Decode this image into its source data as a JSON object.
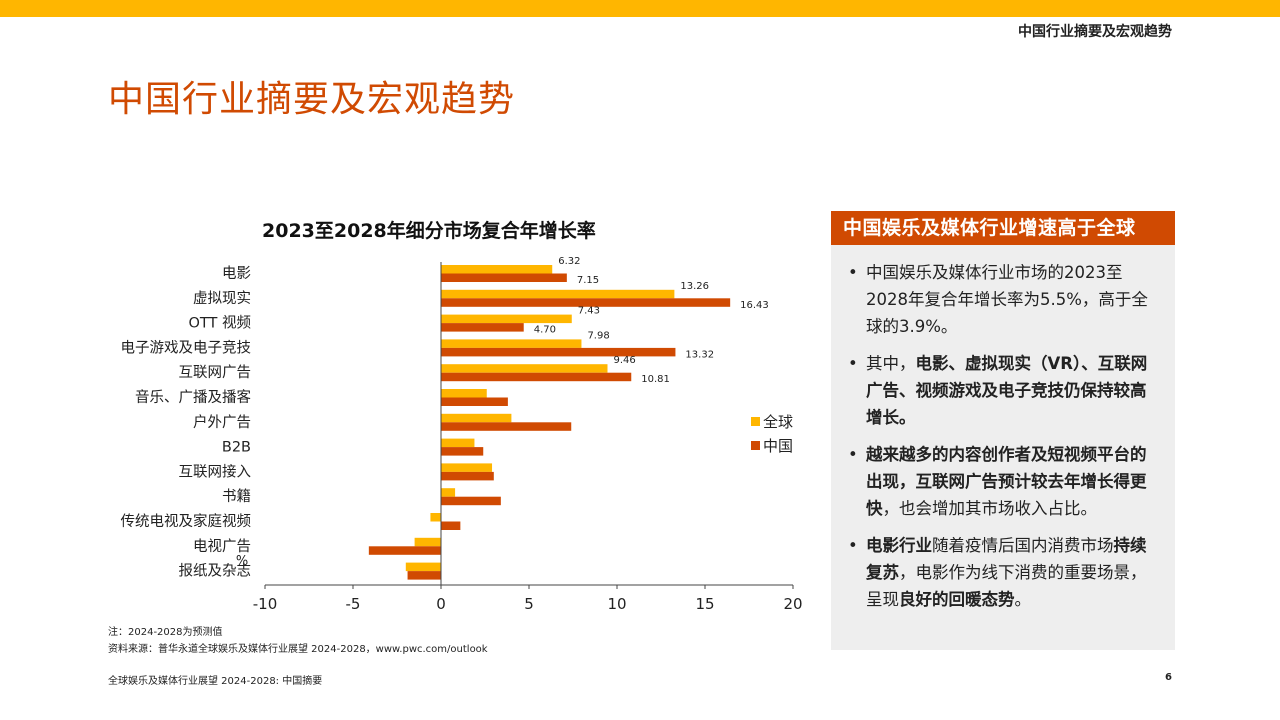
{
  "header": {
    "label": "中国行业摘要及宏观趋势"
  },
  "page_title": "中国行业摘要及宏观趋势",
  "chart_data": {
    "type": "bar",
    "orientation": "horizontal",
    "title": "2023至2028年细分市场复合年增长率",
    "xlabel": "",
    "ylabel": "%",
    "xlim": [
      -10,
      20
    ],
    "xticks": [
      "-10",
      "-5",
      "0",
      "5",
      "10",
      "15",
      "20"
    ],
    "categories": [
      "电影",
      "虚拟现实",
      "OTT 视频",
      "电子游戏及电子竞技",
      "互联网广告",
      "音乐、广播及播客",
      "户外广告",
      "B2B",
      "互联网接入",
      "书籍",
      "传统电视及家庭视频",
      "电视广告",
      "报纸及杂志"
    ],
    "series": [
      {
        "name": "全球",
        "color": "#ffb600",
        "values": [
          6.32,
          13.26,
          7.43,
          7.98,
          9.46,
          2.6,
          4.0,
          1.9,
          2.9,
          0.8,
          -0.6,
          -1.5,
          -2.0
        ],
        "labels": [
          "6.32",
          "13.26",
          "7.43",
          "7.98",
          "9.46",
          null,
          null,
          null,
          null,
          null,
          null,
          null,
          null
        ]
      },
      {
        "name": "中国",
        "color": "#d04a02",
        "values": [
          7.15,
          16.43,
          4.7,
          13.32,
          10.81,
          3.8,
          7.4,
          2.4,
          3.0,
          3.4,
          1.1,
          -4.1,
          -1.9
        ],
        "labels": [
          "7.15",
          "16.43",
          "4.70",
          "13.32",
          "10.81",
          null,
          null,
          null,
          null,
          null,
          null,
          null,
          null
        ]
      }
    ],
    "grid": false,
    "legend": "right"
  },
  "notes": {
    "note1": "注：2024-2028为预测值",
    "note2": "资料来源：普华永道全球娱乐及媒体行业展望 2024-2028，www.pwc.com/outlook"
  },
  "panel": {
    "title": "中国娱乐及媒体行业增速高于全球",
    "bullets": [
      {
        "parts": [
          {
            "t": "中国娱乐及媒体行业市场的2023至2028年复合年增长率为5.5%，高于全球的3.9%。",
            "b": false
          }
        ]
      },
      {
        "parts": [
          {
            "t": "其中，",
            "b": false
          },
          {
            "t": "电影、虚拟现实（VR）、互联网广告、视频游戏及电子竞技仍保持较高增长。",
            "b": true
          }
        ]
      },
      {
        "parts": [
          {
            "t": "越来越多的内容创作者及短视频平台的出现，互联网广告预计较去年增长得更快",
            "b": true
          },
          {
            "t": "，也会增加其市场收入占比。",
            "b": false
          }
        ]
      },
      {
        "parts": [
          {
            "t": "电影行业",
            "b": true
          },
          {
            "t": "随着疫情后国内消费市场",
            "b": false
          },
          {
            "t": "持续复苏",
            "b": true
          },
          {
            "t": "，电影作为线下消费的重要场景，呈现",
            "b": false
          },
          {
            "t": "良好的回暖态势",
            "b": true
          },
          {
            "t": "。",
            "b": false
          }
        ]
      }
    ]
  },
  "footer": {
    "left": "全球娱乐及媒体行业展望 2024-2028: 中国摘要",
    "page_number": "6"
  }
}
